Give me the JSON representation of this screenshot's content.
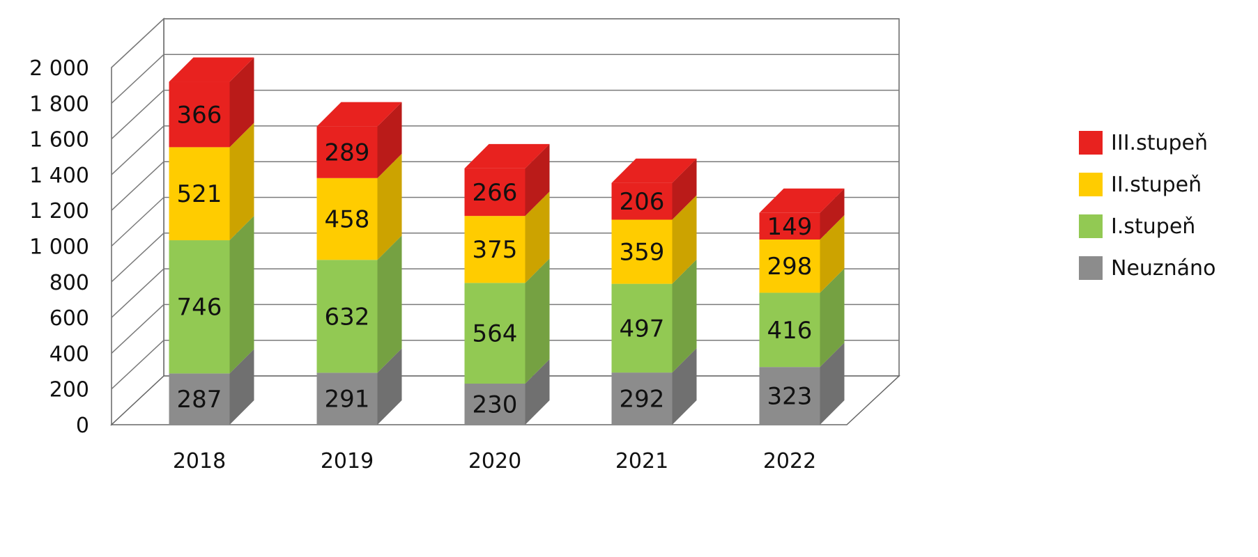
{
  "chart_data": {
    "type": "bar",
    "stacked": true,
    "three_d": true,
    "categories": [
      "2018",
      "2019",
      "2020",
      "2021",
      "2022"
    ],
    "series": [
      {
        "name": "Neuznáno",
        "color": "#8c8c8c",
        "values": [
          287,
          291,
          230,
          292,
          323
        ]
      },
      {
        "name": "I.stupeň",
        "color": "#92c953",
        "values": [
          746,
          632,
          564,
          497,
          416
        ]
      },
      {
        "name": "II.stupeň",
        "color": "#ffcc00",
        "values": [
          521,
          458,
          375,
          359,
          298
        ]
      },
      {
        "name": "III.stupeň",
        "color": "#e8221f",
        "values": [
          366,
          289,
          266,
          206,
          149
        ]
      }
    ],
    "y_ticks": [
      "0",
      "200",
      "400",
      "600",
      "800",
      "1 000",
      "1 200",
      "1 400",
      "1 600",
      "1 800",
      "2 000"
    ],
    "ylim": [
      0,
      2000
    ],
    "grid": true,
    "legend_position": "right",
    "title": "",
    "xlabel": "",
    "ylabel": ""
  }
}
